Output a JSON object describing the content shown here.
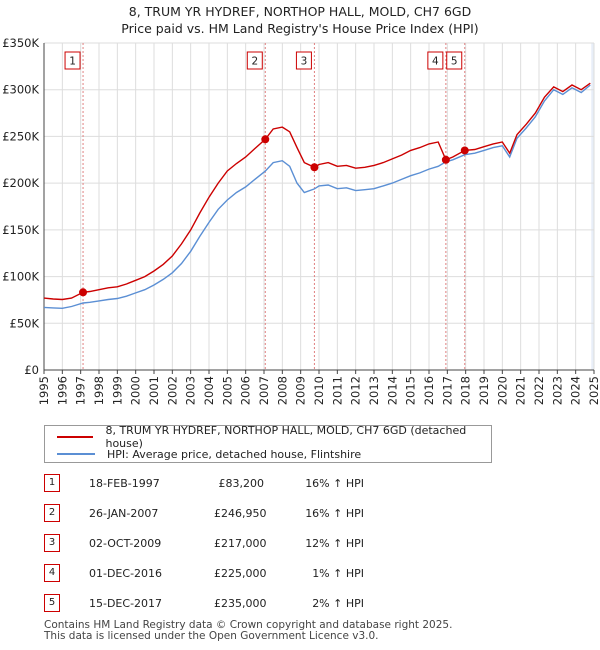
{
  "chart_data": {
    "type": "line",
    "title": "8, TRUM YR HYDREF, NORTHOP HALL, MOLD, CH7 6GD",
    "subtitle": "Price paid vs. HM Land Registry's House Price Index (HPI)",
    "xlim": [
      1995,
      2025
    ],
    "ylim": [
      0,
      350000
    ],
    "x_ticks": [
      "1995",
      "1996",
      "1997",
      "1998",
      "1999",
      "2000",
      "2001",
      "2002",
      "2003",
      "2004",
      "2005",
      "2006",
      "2007",
      "2008",
      "2009",
      "2010",
      "2011",
      "2012",
      "2013",
      "2014",
      "2015",
      "2016",
      "2017",
      "2018",
      "2019",
      "2020",
      "2021",
      "2022",
      "2023",
      "2024",
      "2025"
    ],
    "y_ticks": [
      {
        "value": 0,
        "label": "£0"
      },
      {
        "value": 50000,
        "label": "£50K"
      },
      {
        "value": 100000,
        "label": "£100K"
      },
      {
        "value": 150000,
        "label": "£150K"
      },
      {
        "value": 200000,
        "label": "£200K"
      },
      {
        "value": 250000,
        "label": "£250K"
      },
      {
        "value": 300000,
        "label": "£300K"
      },
      {
        "value": 350000,
        "label": "£350K"
      }
    ],
    "grid": true,
    "colors": {
      "property": "#cc0000",
      "hpi": "#5b8fd4",
      "marker_line": "#e08080",
      "shade": "#e8eef8"
    },
    "series": [
      {
        "name": "8, TRUM YR HYDREF, NORTHOP HALL, MOLD, CH7 6GD (detached house)",
        "key": "property",
        "points": [
          [
            1995.0,
            77000
          ],
          [
            1995.5,
            76000
          ],
          [
            1996.0,
            75500
          ],
          [
            1996.5,
            77000
          ],
          [
            1997.13,
            83200
          ],
          [
            1997.5,
            84000
          ],
          [
            1998.0,
            86000
          ],
          [
            1998.5,
            88000
          ],
          [
            1999.0,
            89000
          ],
          [
            1999.5,
            92000
          ],
          [
            2000.0,
            96000
          ],
          [
            2000.5,
            100000
          ],
          [
            2001.0,
            106000
          ],
          [
            2001.5,
            113000
          ],
          [
            2002.0,
            122000
          ],
          [
            2002.5,
            135000
          ],
          [
            2003.0,
            150000
          ],
          [
            2003.5,
            168000
          ],
          [
            2004.0,
            185000
          ],
          [
            2004.5,
            200000
          ],
          [
            2005.0,
            213000
          ],
          [
            2005.5,
            221000
          ],
          [
            2006.0,
            228000
          ],
          [
            2006.5,
            237000
          ],
          [
            2007.07,
            246950
          ],
          [
            2007.5,
            258000
          ],
          [
            2008.0,
            260000
          ],
          [
            2008.4,
            255000
          ],
          [
            2008.8,
            238000
          ],
          [
            2009.2,
            222000
          ],
          [
            2009.75,
            217000
          ],
          [
            2010.0,
            220000
          ],
          [
            2010.5,
            222000
          ],
          [
            2011.0,
            218000
          ],
          [
            2011.5,
            219000
          ],
          [
            2012.0,
            216000
          ],
          [
            2012.5,
            217000
          ],
          [
            2013.0,
            219000
          ],
          [
            2013.5,
            222000
          ],
          [
            2014.0,
            226000
          ],
          [
            2014.5,
            230000
          ],
          [
            2015.0,
            235000
          ],
          [
            2015.5,
            238000
          ],
          [
            2016.0,
            242000
          ],
          [
            2016.5,
            244000
          ],
          [
            2016.92,
            225000
          ],
          [
            2017.3,
            228000
          ],
          [
            2017.95,
            235000
          ],
          [
            2018.5,
            236000
          ],
          [
            2019.0,
            239000
          ],
          [
            2019.5,
            242000
          ],
          [
            2020.0,
            244000
          ],
          [
            2020.4,
            232000
          ],
          [
            2020.8,
            252000
          ],
          [
            2021.3,
            263000
          ],
          [
            2021.8,
            275000
          ],
          [
            2022.3,
            292000
          ],
          [
            2022.8,
            303000
          ],
          [
            2023.3,
            298000
          ],
          [
            2023.8,
            305000
          ],
          [
            2024.3,
            300000
          ],
          [
            2024.8,
            307000
          ]
        ]
      },
      {
        "name": "HPI: Average price, detached house, Flintshire",
        "key": "hpi",
        "points": [
          [
            1995.0,
            67000
          ],
          [
            1995.5,
            66500
          ],
          [
            1996.0,
            66000
          ],
          [
            1996.5,
            68000
          ],
          [
            1997.13,
            71700
          ],
          [
            1997.5,
            72500
          ],
          [
            1998.0,
            74000
          ],
          [
            1998.5,
            75500
          ],
          [
            1999.0,
            76500
          ],
          [
            1999.5,
            79000
          ],
          [
            2000.0,
            82500
          ],
          [
            2000.5,
            86000
          ],
          [
            2001.0,
            91000
          ],
          [
            2001.5,
            97000
          ],
          [
            2002.0,
            104000
          ],
          [
            2002.5,
            114000
          ],
          [
            2003.0,
            127000
          ],
          [
            2003.5,
            143000
          ],
          [
            2004.0,
            158000
          ],
          [
            2004.5,
            172000
          ],
          [
            2005.0,
            182000
          ],
          [
            2005.5,
            190000
          ],
          [
            2006.0,
            196000
          ],
          [
            2006.5,
            204000
          ],
          [
            2007.07,
            212900
          ],
          [
            2007.5,
            222000
          ],
          [
            2008.0,
            224000
          ],
          [
            2008.4,
            218000
          ],
          [
            2008.8,
            200000
          ],
          [
            2009.2,
            190000
          ],
          [
            2009.75,
            193800
          ],
          [
            2010.0,
            197000
          ],
          [
            2010.5,
            198000
          ],
          [
            2011.0,
            194000
          ],
          [
            2011.5,
            195000
          ],
          [
            2012.0,
            192000
          ],
          [
            2012.5,
            193000
          ],
          [
            2013.0,
            194000
          ],
          [
            2013.5,
            197000
          ],
          [
            2014.0,
            200000
          ],
          [
            2014.5,
            204000
          ],
          [
            2015.0,
            208000
          ],
          [
            2015.5,
            211000
          ],
          [
            2016.0,
            215000
          ],
          [
            2016.5,
            218000
          ],
          [
            2016.92,
            222800
          ],
          [
            2017.3,
            225000
          ],
          [
            2017.95,
            230400
          ],
          [
            2018.5,
            232000
          ],
          [
            2019.0,
            235000
          ],
          [
            2019.5,
            238000
          ],
          [
            2020.0,
            240000
          ],
          [
            2020.4,
            228000
          ],
          [
            2020.8,
            248000
          ],
          [
            2021.3,
            259000
          ],
          [
            2021.8,
            271000
          ],
          [
            2022.3,
            288000
          ],
          [
            2022.8,
            300000
          ],
          [
            2023.3,
            295000
          ],
          [
            2023.8,
            302000
          ],
          [
            2024.3,
            297000
          ],
          [
            2024.8,
            305000
          ]
        ]
      }
    ],
    "transactions": [
      {
        "num": "1",
        "x": 1997.13,
        "price": 83200,
        "date": "18-FEB-1997",
        "price_label": "£83,200",
        "hpi_label": "16% ↑ HPI"
      },
      {
        "num": "2",
        "x": 2007.07,
        "price": 246950,
        "date": "26-JAN-2007",
        "price_label": "£246,950",
        "hpi_label": "16% ↑ HPI"
      },
      {
        "num": "3",
        "x": 2009.75,
        "price": 217000,
        "date": "02-OCT-2009",
        "price_label": "£217,000",
        "hpi_label": "12% ↑ HPI"
      },
      {
        "num": "4",
        "x": 2016.92,
        "price": 225000,
        "date": "01-DEC-2016",
        "price_label": "£225,000",
        "hpi_label": "1% ↑ HPI"
      },
      {
        "num": "5",
        "x": 2017.95,
        "price": 235000,
        "date": "15-DEC-2017",
        "price_label": "£235,000",
        "hpi_label": "2% ↑ HPI"
      }
    ]
  },
  "legend": {
    "property_label": "8, TRUM YR HYDREF, NORTHOP HALL, MOLD, CH7 6GD (detached house)",
    "hpi_label": "HPI: Average price, detached house, Flintshire"
  },
  "footer": {
    "line1": "Contains HM Land Registry data © Crown copyright and database right 2025.",
    "line2": "This data is licensed under the Open Government Licence v3.0."
  }
}
